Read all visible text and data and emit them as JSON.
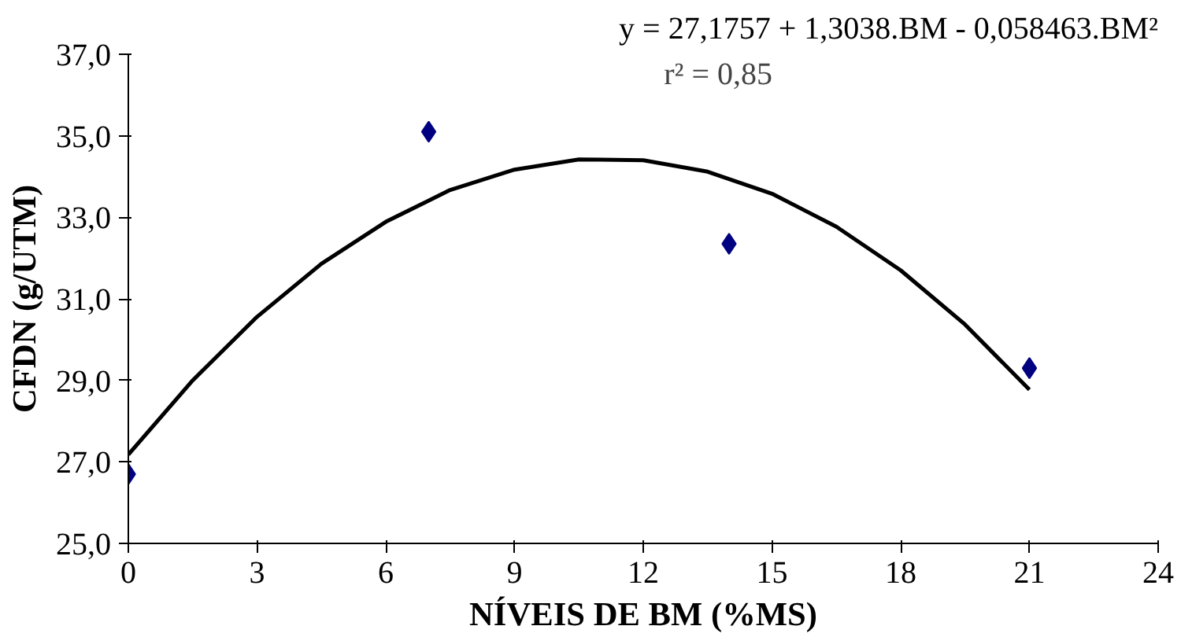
{
  "chart_data": {
    "type": "scatter",
    "xlabel": "NÍVEIS DE BM (%MS)",
    "ylabel": "CFDN (g/UTM)",
    "x": [
      0,
      7,
      14,
      21
    ],
    "series": [
      {
        "color": "#000080",
        "marker": "diamond",
        "values": [
          26.7,
          35.1,
          32.35,
          29.3
        ]
      },
      {
        "type": "line",
        "color": "#000000",
        "line_style": "solid",
        "x": [
          0,
          1.5,
          3,
          4.5,
          6,
          7.5,
          9,
          10.5,
          12,
          13.5,
          15,
          16.5,
          18,
          19.5,
          21
        ],
        "values": [
          27.18,
          29.0,
          30.56,
          31.86,
          32.89,
          33.67,
          34.17,
          34.42,
          34.4,
          34.12,
          33.58,
          32.77,
          31.7,
          30.37,
          28.77
        ]
      }
    ],
    "xlim": [
      0,
      24
    ],
    "xticks": [
      0,
      3,
      6,
      9,
      12,
      15,
      18,
      21,
      24
    ],
    "ylim": [
      25,
      37
    ],
    "yticks": [
      {
        "value": 25,
        "label": "25,0"
      },
      {
        "value": 27,
        "label": "27,0"
      },
      {
        "value": 29,
        "label": "29,0"
      },
      {
        "value": 31,
        "label": "31,0"
      },
      {
        "value": 33,
        "label": "33,0"
      },
      {
        "value": 35,
        "label": "35,0"
      },
      {
        "value": 37,
        "label": "37,0"
      }
    ],
    "grid": false,
    "annotations": [
      "y = 27,1757 + 1,3038.BM - 0,058463.BM²",
      "r² = 0,85"
    ]
  }
}
